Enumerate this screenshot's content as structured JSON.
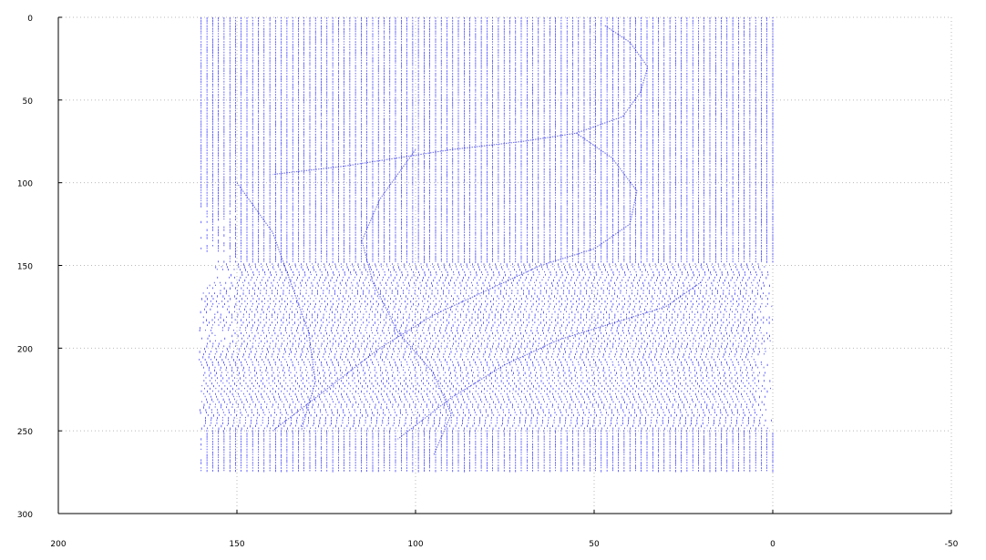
{
  "chart_data": {
    "type": "scatter",
    "title": "",
    "xlabel": "",
    "ylabel": "",
    "xlim": [
      200,
      -50
    ],
    "ylim": [
      300,
      0
    ],
    "x_reversed": true,
    "y_reversed": true,
    "grid": true,
    "x_ticks": [
      200,
      150,
      100,
      50,
      0,
      -50
    ],
    "y_ticks": [
      0,
      50,
      100,
      150,
      200,
      250,
      300
    ],
    "x_tick_labels": [
      "200",
      "150",
      "100",
      "50",
      "0",
      "-50"
    ],
    "y_tick_labels": [
      "0",
      "50",
      "100",
      "150",
      "200",
      "250",
      "300"
    ],
    "series": [
      {
        "color": "#0000ff",
        "marker": "short vertical stroke",
        "point_spacing": 1,
        "x_range": [
          0,
          161
        ],
        "y_range": [
          0,
          275
        ],
        "description_of_extent": "dense point cloud of a seated figure",
        "row_extents": [
          {
            "y_from": 0,
            "y_to": 100,
            "x_from": 0,
            "x_to": 161
          },
          {
            "y_from": 100,
            "y_to": 150,
            "x_from": 0,
            "x_to": 161
          },
          {
            "y_from": 150,
            "y_to": 275,
            "x_from": 0,
            "x_to": 160
          }
        ]
      }
    ]
  }
}
